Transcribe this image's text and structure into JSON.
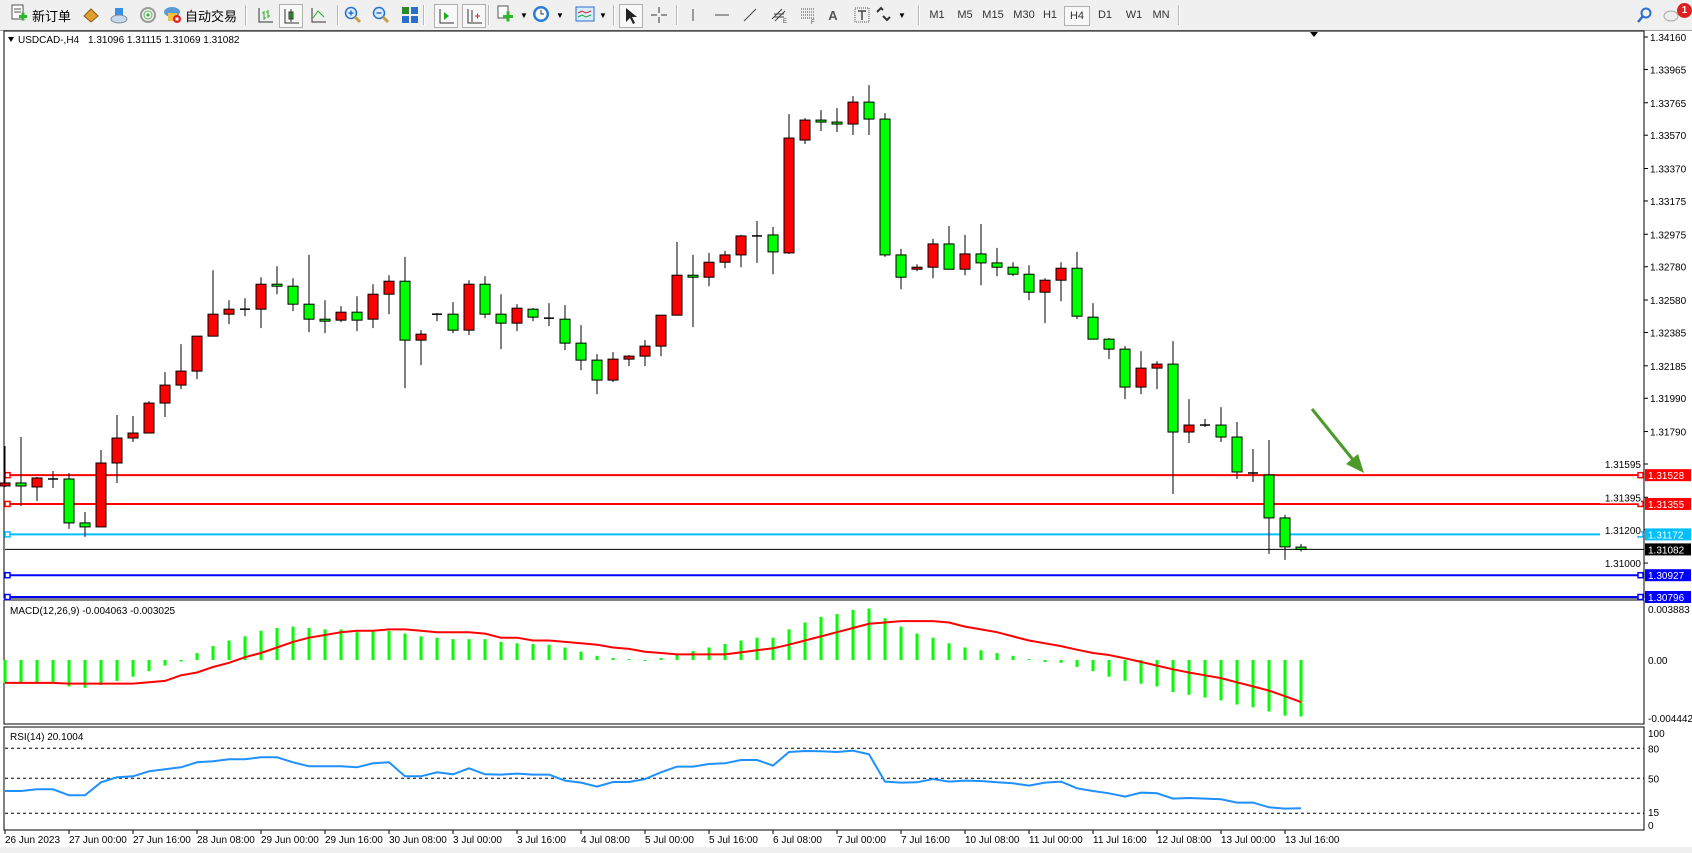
{
  "toolbar": {
    "new_order_label": "新订单",
    "auto_trading_label": "自动交易",
    "timeframes": [
      "M1",
      "M5",
      "M15",
      "M30",
      "H1",
      "H4",
      "D1",
      "W1",
      "MN"
    ],
    "selected_timeframe": "H4",
    "notification_count": "1",
    "text_tool_label": "A"
  },
  "chart": {
    "header_symbol": "USDCAD-,H4",
    "header_ohlc": "1.31096 1.31115 1.31069 1.31082",
    "macd_label": "MACD(12,26,9) -0.004063 -0.003025",
    "rsi_label": "RSI(14) 20.1004",
    "annotation_arrow_color": "#4c9a2a"
  },
  "chart_data": [
    {
      "type": "candlestick",
      "symbol": "USDCAD-",
      "timeframe": "H4",
      "bull_color": "#ff0000",
      "bear_color": "#00ff00",
      "open": [
        1.31463,
        1.31481,
        1.31457,
        1.31505,
        1.31505,
        1.31241,
        1.31217,
        1.31601,
        1.31751,
        1.31781,
        1.31961,
        1.32069,
        1.32153,
        1.32363,
        1.32495,
        1.32525,
        1.32525,
        1.32675,
        1.32663,
        1.32555,
        1.32465,
        1.32459,
        1.32507,
        1.32465,
        1.32615,
        1.32693,
        1.32339,
        1.32495,
        1.32495,
        1.32399,
        1.32675,
        1.32495,
        1.32441,
        1.32525,
        1.32471,
        1.32465,
        1.32321,
        1.32219,
        1.32099,
        1.32225,
        1.32243,
        1.32303,
        1.32489,
        1.32729,
        1.32717,
        1.32807,
        1.32851,
        1.32965,
        1.32971,
        1.32863,
        1.33541,
        1.33661,
        1.33649,
        1.33637,
        1.33769,
        1.33667,
        1.32851,
        1.32765,
        1.32777,
        1.32917,
        1.32765,
        1.32857,
        1.32803,
        1.32777,
        1.32735,
        1.32627,
        1.32699,
        1.32771,
        1.32477,
        1.32345,
        1.32285,
        1.32057,
        1.32171,
        1.32195,
        1.31787,
        1.31829,
        1.31829,
        1.31757,
        1.31541,
        1.31529,
        1.31271,
        1.31096
      ],
      "high": [
        1.31703,
        1.31757,
        1.31517,
        1.31553,
        1.31541,
        1.31307,
        1.31679,
        1.31889,
        1.31883,
        1.31973,
        1.32147,
        1.32315,
        1.32365,
        1.32759,
        1.32579,
        1.32591,
        1.32717,
        1.32783,
        1.32711,
        1.32851,
        1.32579,
        1.32543,
        1.32603,
        1.32675,
        1.32729,
        1.32839,
        1.32399,
        1.32501,
        1.32567,
        1.32699,
        1.32723,
        1.32615,
        1.32555,
        1.32531,
        1.32561,
        1.32549,
        1.32429,
        1.32255,
        1.32267,
        1.32249,
        1.32339,
        1.32489,
        1.32929,
        1.32851,
        1.32863,
        1.32875,
        1.32971,
        1.33055,
        1.33019,
        1.33697,
        1.33673,
        1.33721,
        1.33733,
        1.33805,
        1.33871,
        1.33703,
        1.32887,
        1.32795,
        1.32947,
        1.33025,
        1.32971,
        1.33037,
        1.32893,
        1.32807,
        1.32789,
        1.32711,
        1.32807,
        1.32869,
        1.32561,
        1.32351,
        1.32303,
        1.32273,
        1.32213,
        1.32333,
        1.31985,
        1.31865,
        1.31937,
        1.31847,
        1.31685,
        1.31739,
        1.31289,
        1.31115
      ],
      "low": [
        1.31457,
        1.31343,
        1.31373,
        1.31451,
        1.31205,
        1.31157,
        1.31215,
        1.31481,
        1.31727,
        1.31779,
        1.31877,
        1.32045,
        1.32105,
        1.32361,
        1.32435,
        1.32483,
        1.32411,
        1.32615,
        1.32513,
        1.32387,
        1.32381,
        1.32447,
        1.32393,
        1.32411,
        1.32495,
        1.32051,
        1.32189,
        1.32453,
        1.32381,
        1.32369,
        1.32471,
        1.32285,
        1.32393,
        1.32453,
        1.32423,
        1.32279,
        1.32159,
        1.32015,
        1.32087,
        1.32183,
        1.32183,
        1.32243,
        1.32489,
        1.32417,
        1.32663,
        1.32771,
        1.32777,
        1.32803,
        1.32735,
        1.32857,
        1.33517,
        1.33595,
        1.33589,
        1.33571,
        1.33571,
        1.32839,
        1.32645,
        1.32753,
        1.32711,
        1.32763,
        1.32729,
        1.32669,
        1.32723,
        1.32723,
        1.32579,
        1.32441,
        1.32573,
        1.32465,
        1.32345,
        1.32225,
        1.31985,
        1.32015,
        1.32045,
        1.31415,
        1.31721,
        1.31817,
        1.31727,
        1.31505,
        1.31487,
        1.31055,
        1.31019,
        1.31069
      ],
      "close": [
        1.31481,
        1.31463,
        1.31511,
        1.31505,
        1.31241,
        1.31217,
        1.31601,
        1.31751,
        1.31781,
        1.31961,
        1.32069,
        1.32153,
        1.32363,
        1.32495,
        1.32525,
        1.32525,
        1.32675,
        1.32663,
        1.32555,
        1.32465,
        1.32453,
        1.32507,
        1.32459,
        1.32615,
        1.32693,
        1.32339,
        1.32375,
        1.32495,
        1.32399,
        1.32675,
        1.32495,
        1.32441,
        1.32531,
        1.32477,
        1.32471,
        1.32321,
        1.32219,
        1.32099,
        1.32225,
        1.32243,
        1.32303,
        1.32489,
        1.32729,
        1.32717,
        1.32807,
        1.32851,
        1.32965,
        1.32965,
        1.32869,
        1.33553,
        1.33661,
        1.33649,
        1.33637,
        1.33769,
        1.33667,
        1.32851,
        1.32717,
        1.32777,
        1.32917,
        1.32765,
        1.32857,
        1.32803,
        1.32777,
        1.32735,
        1.32627,
        1.32699,
        1.32771,
        1.32483,
        1.32345,
        1.32285,
        1.32057,
        1.32171,
        1.32195,
        1.31787,
        1.31829,
        1.31829,
        1.31757,
        1.31547,
        1.31541,
        1.31271,
        1.31097,
        1.31082
      ],
      "ylim": [
        1.30796,
        1.3416
      ],
      "price_ticks": [
        "1.34160",
        "1.33965",
        "1.33765",
        "1.33570",
        "1.33370",
        "1.33175",
        "1.32975",
        "1.32780",
        "1.32580",
        "1.32385",
        "1.32185",
        "1.31990",
        "1.31790",
        "1.31595",
        "1.31395",
        "1.31200",
        "1.31000"
      ],
      "x_tick_labels": [
        "26 Jun 2023",
        "27 Jun 00:00",
        "27 Jun 16:00",
        "28 Jun 08:00",
        "29 Jun 00:00",
        "29 Jun 16:00",
        "30 Jun 08:00",
        "3 Jul 00:00",
        "3 Jul 16:00",
        "4 Jul 08:00",
        "5 Jul 00:00",
        "5 Jul 16:00",
        "6 Jul 08:00",
        "7 Jul 00:00",
        "7 Jul 16:00",
        "10 Jul 08:00",
        "11 Jul 00:00",
        "11 Jul 16:00",
        "12 Jul 08:00",
        "13 Jul 00:00",
        "13 Jul 16:00"
      ],
      "horizontal_levels": [
        {
          "price": 1.31528,
          "label": "1.31528",
          "color": "#ff0000"
        },
        {
          "price": 1.31355,
          "label": "1.31355",
          "color": "#ff0000"
        },
        {
          "price": 1.31172,
          "label": "1.31172",
          "color": "#00bfff"
        },
        {
          "price": 1.30927,
          "label": "1.30927",
          "color": "#0000ff"
        },
        {
          "price": 1.30796,
          "label": "1.30796",
          "color": "#0000ff"
        }
      ],
      "current_price": {
        "price": 1.31082,
        "label": "1.31082",
        "color": "#000000"
      }
    },
    {
      "type": "bar",
      "indicator": "MACD(12,26,9)",
      "histogram_color": "#00ff00",
      "signal_color": "#ff0000",
      "ylim": [
        -0.004442,
        0.003883
      ],
      "axis_labels": [
        "0.003883",
        "0.00",
        "-0.004442"
      ],
      "macd": [
        -0.00165,
        -0.0017,
        -0.0017,
        -0.0017,
        -0.0019,
        -0.002,
        -0.0018,
        -0.0015,
        -0.0012,
        -0.0008,
        -0.0004,
        -0.0001,
        0.0005,
        0.001,
        0.0014,
        0.0017,
        0.0021,
        0.0023,
        0.0024,
        0.0023,
        0.0022,
        0.0022,
        0.002,
        0.0021,
        0.0021,
        0.0019,
        0.0017,
        0.0016,
        0.0015,
        0.0015,
        0.0015,
        0.0013,
        0.0012,
        0.00115,
        0.0011,
        0.0009,
        0.0006,
        0.0003,
        0.00014,
        7e-05,
        -3e-05,
        0.00014,
        0.00036,
        0.00065,
        0.0009,
        0.00115,
        0.0014,
        0.0016,
        0.0016,
        0.0022,
        0.0027,
        0.0031,
        0.0033,
        0.0036,
        0.0037,
        0.003,
        0.0024,
        0.0019,
        0.0016,
        0.0012,
        0.0009,
        0.0007,
        0.0005,
        0.0003,
        7e-05,
        -0.00014,
        -0.0002,
        -0.0005,
        -0.0008,
        -0.0012,
        -0.0015,
        -0.0017,
        -0.0019,
        -0.0023,
        -0.0025,
        -0.0027,
        -0.0029,
        -0.0032,
        -0.0034,
        -0.0037,
        -0.004,
        -0.004063
      ],
      "signal": [
        -0.00165,
        -0.00165,
        -0.00165,
        -0.00165,
        -0.0017,
        -0.0017,
        -0.0017,
        -0.0017,
        -0.0017,
        -0.0016,
        -0.0015,
        -0.0011,
        -0.0009,
        -0.0005,
        -0.0002,
        0.0002,
        0.0005,
        0.0009,
        0.0013,
        0.0016,
        0.0018,
        0.002,
        0.0021,
        0.0021,
        0.0022,
        0.0022,
        0.0021,
        0.002,
        0.002,
        0.002,
        0.0019,
        0.0016,
        0.0016,
        0.0014,
        0.0014,
        0.0013,
        0.0012,
        0.0011,
        0.0009,
        0.0008,
        0.0006,
        0.0005,
        0.0004,
        0.0004,
        0.0004,
        0.0004,
        0.00055,
        0.0007,
        0.00084,
        0.0011,
        0.0014,
        0.0017,
        0.002,
        0.0023,
        0.0026,
        0.0027,
        0.0028,
        0.0028,
        0.0028,
        0.0027,
        0.0024,
        0.0022,
        0.002,
        0.0017,
        0.0014,
        0.0012,
        0.001,
        0.00074,
        0.0005,
        0.00036,
        0.00012,
        -0.00014,
        -0.0004,
        -0.00067,
        -0.0009,
        -0.0011,
        -0.0013,
        -0.0016,
        -0.0019,
        -0.0022,
        -0.0026,
        -0.003025
      ]
    },
    {
      "type": "line",
      "indicator": "RSI(14)",
      "line_color": "#1e90ff",
      "ylim": [
        0,
        100
      ],
      "levels": [
        80,
        50,
        15
      ],
      "axis_labels": [
        "100",
        "80",
        "50",
        "15",
        "0"
      ],
      "values": [
        37.3,
        37.3,
        39,
        39,
        33,
        33,
        46,
        51,
        52,
        57,
        59,
        61,
        66,
        67,
        69,
        69,
        71,
        71,
        66,
        62,
        62,
        62,
        61,
        65,
        66,
        52,
        52,
        56,
        54,
        60,
        54,
        53.7,
        54.7,
        53.7,
        53.7,
        47.7,
        45.7,
        41.7,
        46.3,
        46.3,
        49.3,
        56,
        61.7,
        61.7,
        64.3,
        65,
        68.3,
        68.3,
        62.7,
        76.3,
        77.3,
        77,
        76.3,
        77.7,
        74,
        46.7,
        45.7,
        46,
        49.3,
        46.7,
        47.7,
        47.3,
        46,
        45,
        42.7,
        45.7,
        46.7,
        40,
        37.3,
        35,
        31.7,
        35.7,
        35,
        29.7,
        30.3,
        29.7,
        29,
        25.7,
        25.7,
        21,
        19.7,
        20.1004
      ]
    }
  ]
}
